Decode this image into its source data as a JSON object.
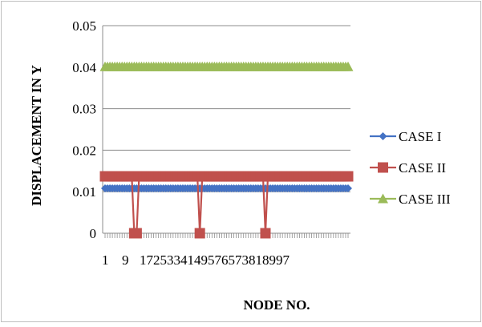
{
  "chart_data": {
    "type": "line",
    "title": "",
    "xlabel": "NODE NO.",
    "ylabel": "DISPLACEMENT IN Y",
    "ylim": [
      0,
      0.05
    ],
    "yticks": [
      "0",
      "0.01",
      "0.02",
      "0.03",
      "0.04",
      "0.05"
    ],
    "xtick_labels": [
      "1",
      "9",
      "17",
      "25",
      "33",
      "41",
      "49",
      "57",
      "65",
      "73",
      "81",
      "89",
      "97"
    ],
    "x_range": [
      1,
      101
    ],
    "grid": "horizontal major",
    "legend_position": "right",
    "series": [
      {
        "name": "CASE I",
        "color": "#4472C4",
        "marker": "diamond",
        "constant_value": 0.0108,
        "dips": []
      },
      {
        "name": "CASE II",
        "color": "#C0504D",
        "marker": "square",
        "constant_value": 0.0137,
        "dips": [
          {
            "node": 13,
            "value": 0
          },
          {
            "node": 14,
            "value": 0
          },
          {
            "node": 40,
            "value": 0
          },
          {
            "node": 67,
            "value": 0
          }
        ]
      },
      {
        "name": "CASE III",
        "color": "#9BBB59",
        "marker": "triangle",
        "constant_value": 0.0401,
        "dips": []
      }
    ]
  }
}
